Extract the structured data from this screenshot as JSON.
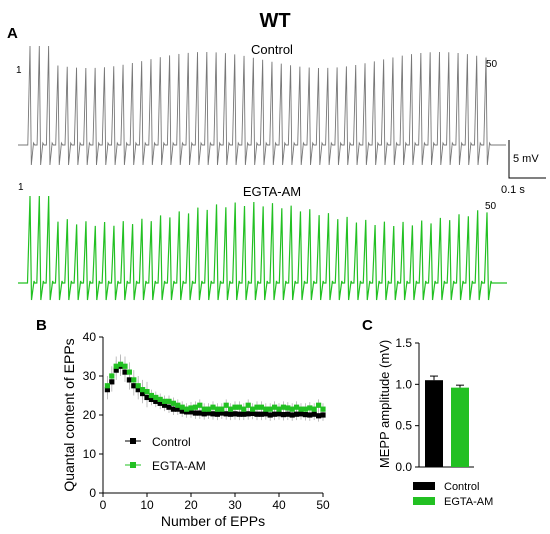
{
  "figure_title": "WT",
  "panel_labels": {
    "a": "A",
    "b": "B",
    "c": "C"
  },
  "colors": {
    "control_trace": "#777777",
    "egta": "#22c022",
    "control_marker": "#000000"
  },
  "chart_data": [
    {
      "panel": "A",
      "type": "line",
      "description_free": true,
      "traces": [
        {
          "name": "Control",
          "start_label": "1",
          "end_label": "50",
          "n_events": 50,
          "color": "#777777"
        },
        {
          "name": "EGTA-AM",
          "start_label": "1",
          "end_label": "50",
          "n_events": 50,
          "color": "#22c022"
        }
      ],
      "scale_bar": {
        "voltage_label": "5 mV",
        "time_label": "0.1 s"
      }
    },
    {
      "panel": "B",
      "type": "scatter",
      "xlabel": "Number of EPPs",
      "ylabel": "Quantal content of EPPs",
      "xlim": [
        0,
        50
      ],
      "ylim": [
        0,
        40
      ],
      "xticks": [
        0,
        10,
        20,
        30,
        40,
        50
      ],
      "yticks": [
        0,
        10,
        20,
        30,
        40
      ],
      "legend_position": "center-left",
      "x": [
        1,
        2,
        3,
        4,
        5,
        6,
        7,
        8,
        9,
        10,
        11,
        12,
        13,
        14,
        15,
        16,
        17,
        18,
        19,
        20,
        21,
        22,
        23,
        24,
        25,
        26,
        27,
        28,
        29,
        30,
        31,
        32,
        33,
        34,
        35,
        36,
        37,
        38,
        39,
        40,
        41,
        42,
        43,
        44,
        45,
        46,
        47,
        48,
        49,
        50
      ],
      "series": [
        {
          "name": "Control",
          "color": "#000000",
          "values": [
            26.5,
            28.5,
            31.5,
            32.5,
            31.0,
            29.0,
            27.5,
            26.5,
            25.5,
            24.5,
            24.0,
            23.5,
            23.0,
            22.5,
            22.0,
            21.5,
            21.5,
            21.0,
            20.8,
            20.8,
            20.5,
            20.5,
            20.3,
            20.5,
            20.3,
            20.2,
            20.5,
            20.3,
            20.2,
            20.3,
            20.2,
            20.2,
            20.3,
            20.4,
            20.2,
            20.2,
            20.3,
            20.0,
            20.2,
            20.3,
            20.1,
            20.2,
            20.0,
            20.2,
            20.3,
            20.1,
            20.0,
            20.2,
            19.8,
            20.0
          ]
        },
        {
          "name": "EGTA-AM",
          "color": "#22c022",
          "values": [
            27.5,
            30.0,
            32.5,
            33.0,
            32.5,
            31.0,
            29.0,
            27.5,
            26.5,
            26.0,
            25.0,
            24.5,
            24.0,
            23.5,
            23.5,
            23.0,
            22.5,
            22.0,
            21.5,
            21.8,
            22.0,
            22.5,
            21.5,
            21.5,
            22.0,
            21.5,
            21.5,
            22.5,
            21.5,
            22.0,
            22.0,
            21.5,
            22.5,
            21.5,
            22.0,
            22.0,
            21.5,
            21.5,
            22.0,
            21.5,
            22.0,
            21.8,
            21.5,
            22.0,
            21.5,
            21.5,
            21.8,
            21.5,
            22.5,
            21.5
          ]
        }
      ]
    },
    {
      "panel": "C",
      "type": "bar",
      "ylabel": "MEPP amplitude (mV)",
      "ylim": [
        0,
        1.5
      ],
      "yticks": [
        "0.0",
        "0.5",
        "1.0",
        "1.5"
      ],
      "categories": [
        "Control",
        "EGTA-AM"
      ],
      "values": [
        1.05,
        0.96
      ],
      "errors": [
        0.05,
        0.03
      ],
      "colors": [
        "#000000",
        "#22c022"
      ],
      "legend_position": "bottom"
    }
  ]
}
